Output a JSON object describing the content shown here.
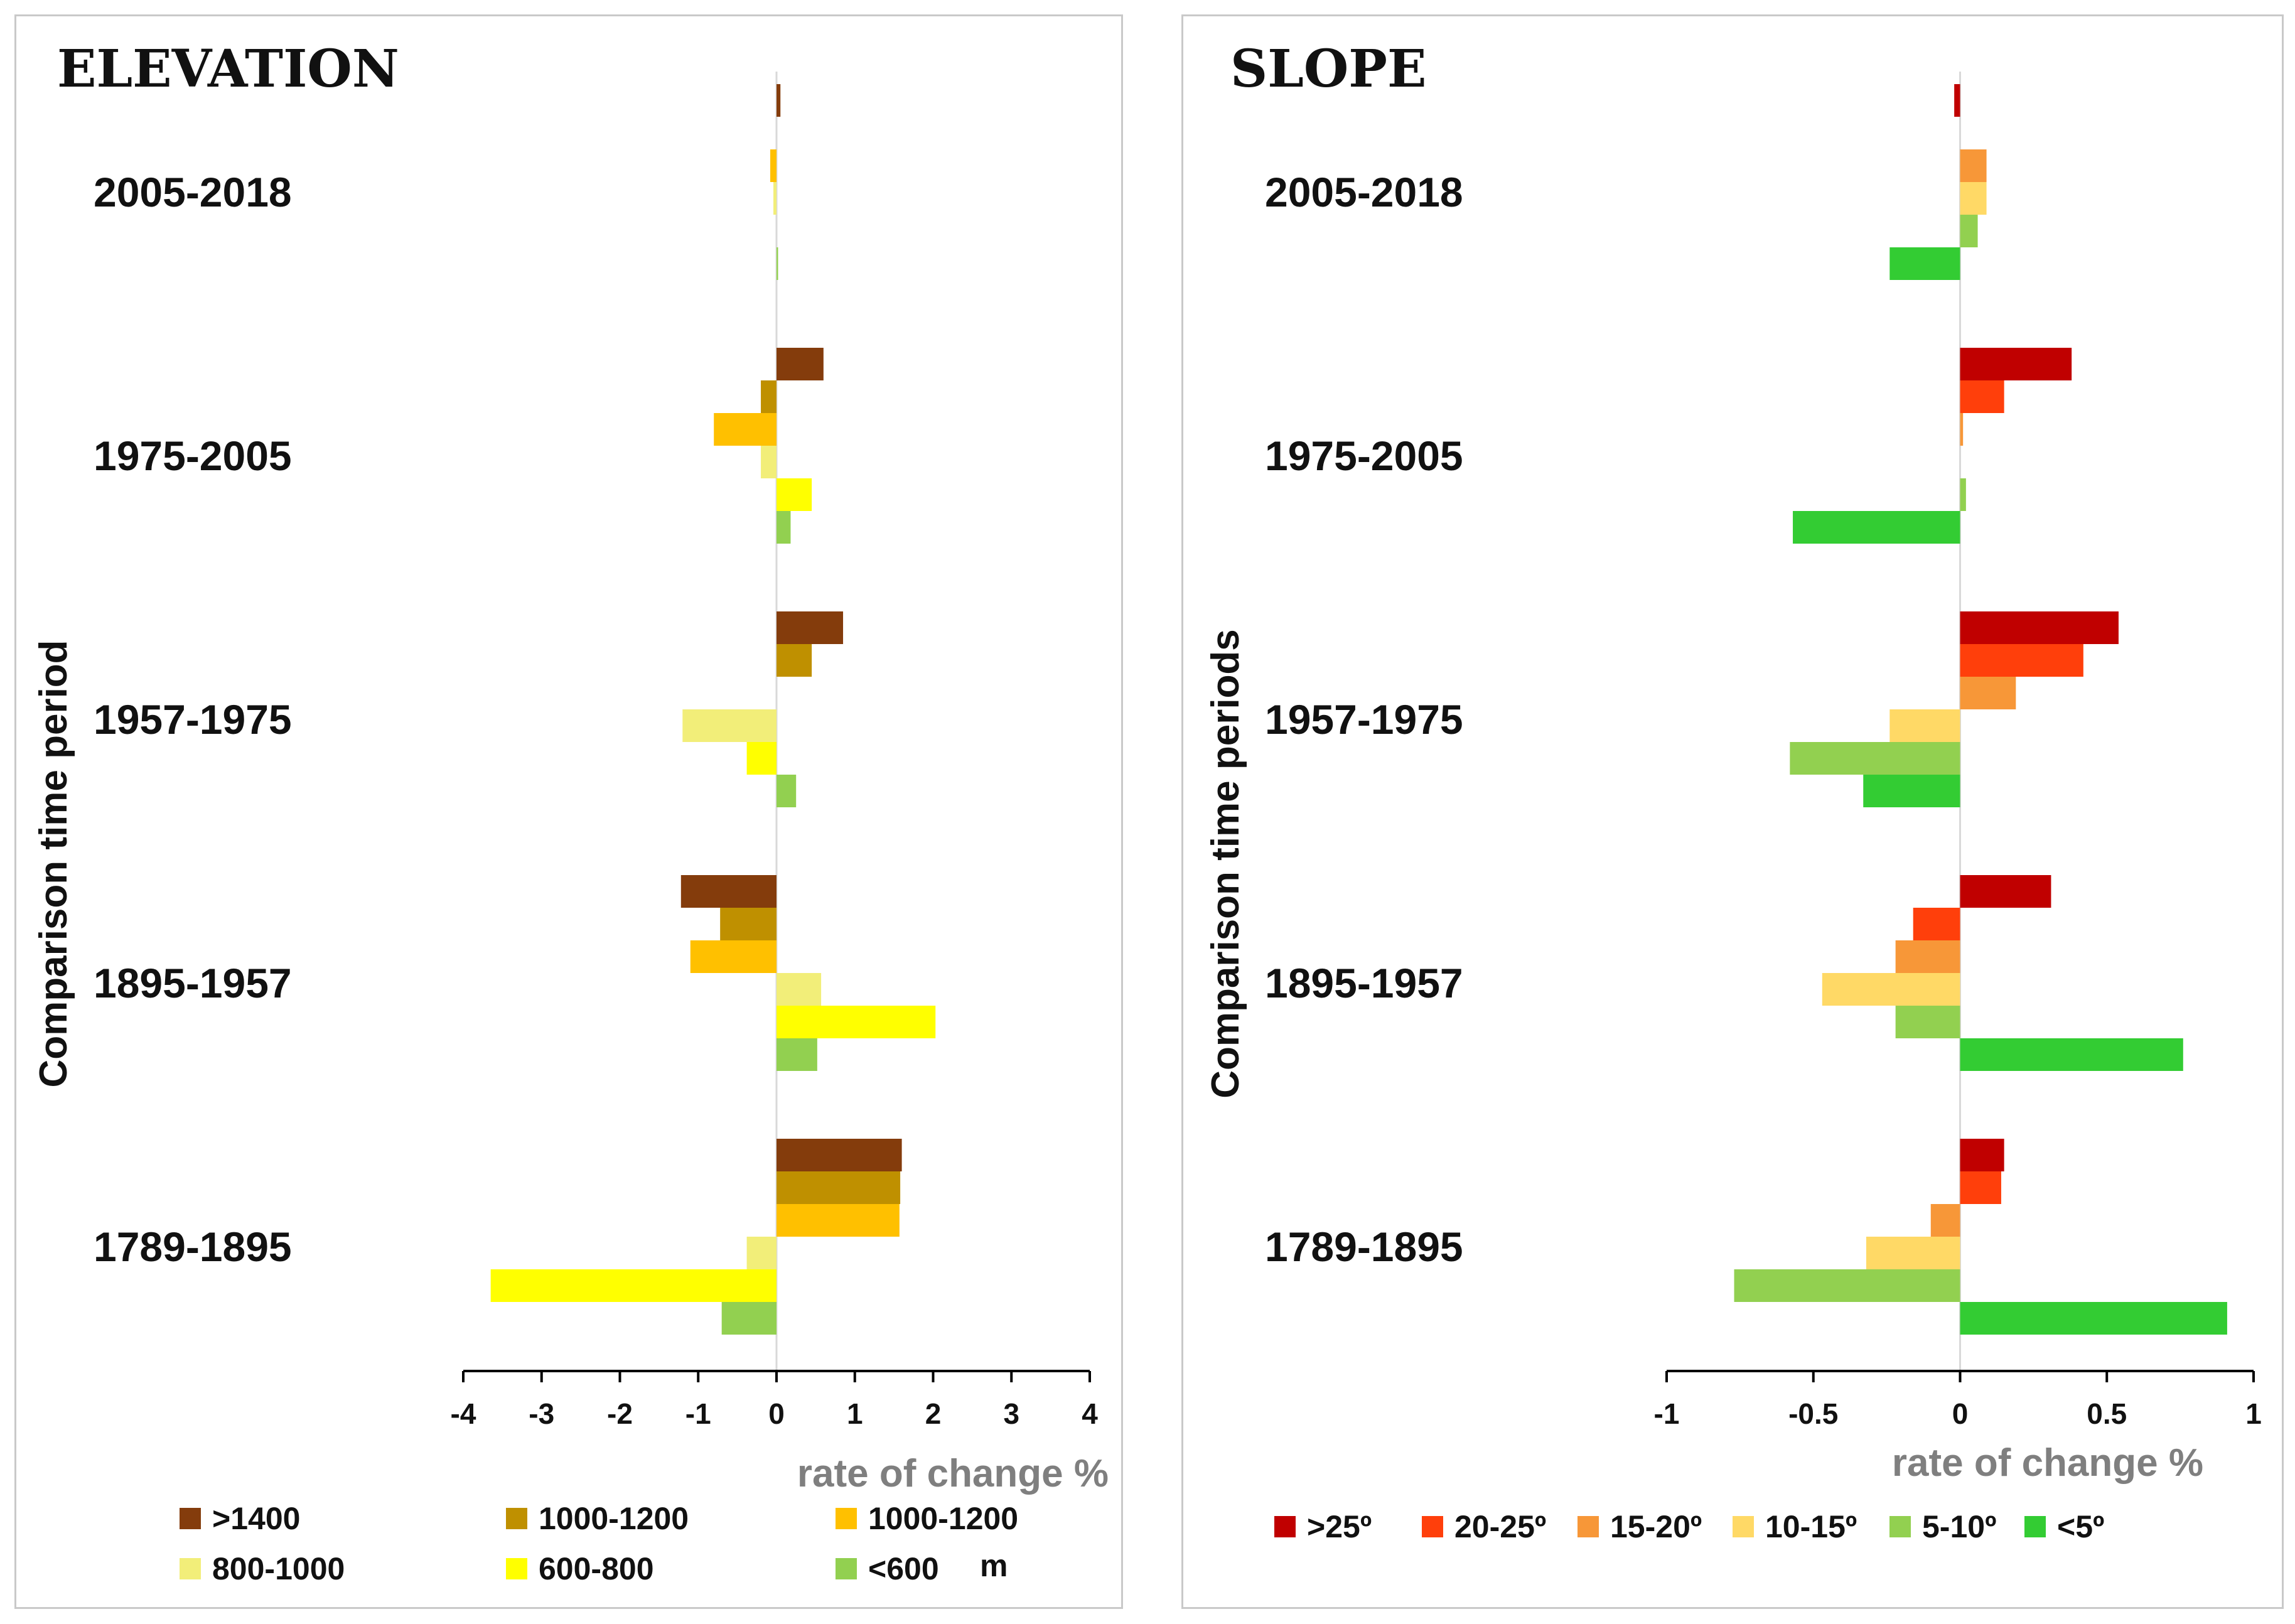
{
  "chart_data": [
    {
      "type": "bar",
      "orientation": "horizontal",
      "title": "ELEVATION",
      "xlabel": "rate of change %",
      "ylabel": "Comparison time period",
      "xlim": [
        -4,
        4
      ],
      "xticks": [
        "-4",
        "-3",
        "-2",
        "-1",
        "0",
        "1",
        "2",
        "3",
        "4"
      ],
      "legend_unit": "m",
      "categories": [
        "2005-2018",
        "1975-2005",
        "1957-1975",
        "1895-1957",
        "1789-1895"
      ],
      "series": [
        {
          "name": ">1400",
          "color": "#843C0C",
          "values": [
            0.05,
            0.6,
            0.85,
            -1.22,
            1.6
          ]
        },
        {
          "name": "1000-1200",
          "color": "#BF9000",
          "values": [
            0.0,
            -0.2,
            0.45,
            -0.72,
            1.58
          ]
        },
        {
          "name": "1000-1200",
          "color": "#FFC000",
          "values": [
            -0.08,
            -0.8,
            0.0,
            -1.1,
            1.57
          ]
        },
        {
          "name": "800-1000",
          "color": "#F2EE79",
          "values": [
            -0.04,
            -0.2,
            -1.2,
            0.57,
            -0.38
          ]
        },
        {
          "name": "600-800",
          "color": "#FFFF00",
          "values": [
            0.0,
            0.45,
            -0.38,
            2.03,
            -3.65
          ]
        },
        {
          "name": "<600",
          "color": "#92D050",
          "values": [
            0.02,
            0.18,
            0.25,
            0.52,
            -0.7
          ]
        }
      ]
    },
    {
      "type": "bar",
      "orientation": "horizontal",
      "title": "SLOPE",
      "xlabel": "rate of change %",
      "ylabel": "Comparison time  periods",
      "xlim": [
        -1,
        1
      ],
      "xticks": [
        "-1",
        "-0.5",
        "0",
        "0.5",
        "1"
      ],
      "categories": [
        "2005-2018",
        "1975-2005",
        "1957-1975",
        "1895-1957",
        "1789-1895"
      ],
      "series": [
        {
          "name": ">25º",
          "color": "#C00000",
          "values": [
            -0.02,
            0.38,
            0.54,
            0.31,
            0.15
          ]
        },
        {
          "name": "20-25º",
          "color": "#FF3F0B",
          "values": [
            0.0,
            0.15,
            0.42,
            -0.16,
            0.14
          ]
        },
        {
          "name": "15-20º",
          "color": "#F79738",
          "values": [
            0.09,
            0.01,
            0.19,
            -0.22,
            -0.1
          ]
        },
        {
          "name": "10-15º",
          "color": "#FFD966",
          "values": [
            0.09,
            0.0,
            -0.24,
            -0.47,
            -0.32
          ]
        },
        {
          "name": "5-10º",
          "color": "#92D050",
          "values": [
            0.06,
            0.02,
            -0.58,
            -0.22,
            -0.77
          ]
        },
        {
          "name": "<5º",
          "color": "#33CC33",
          "values": [
            -0.24,
            -0.57,
            -0.33,
            0.76,
            0.91
          ]
        }
      ]
    }
  ]
}
